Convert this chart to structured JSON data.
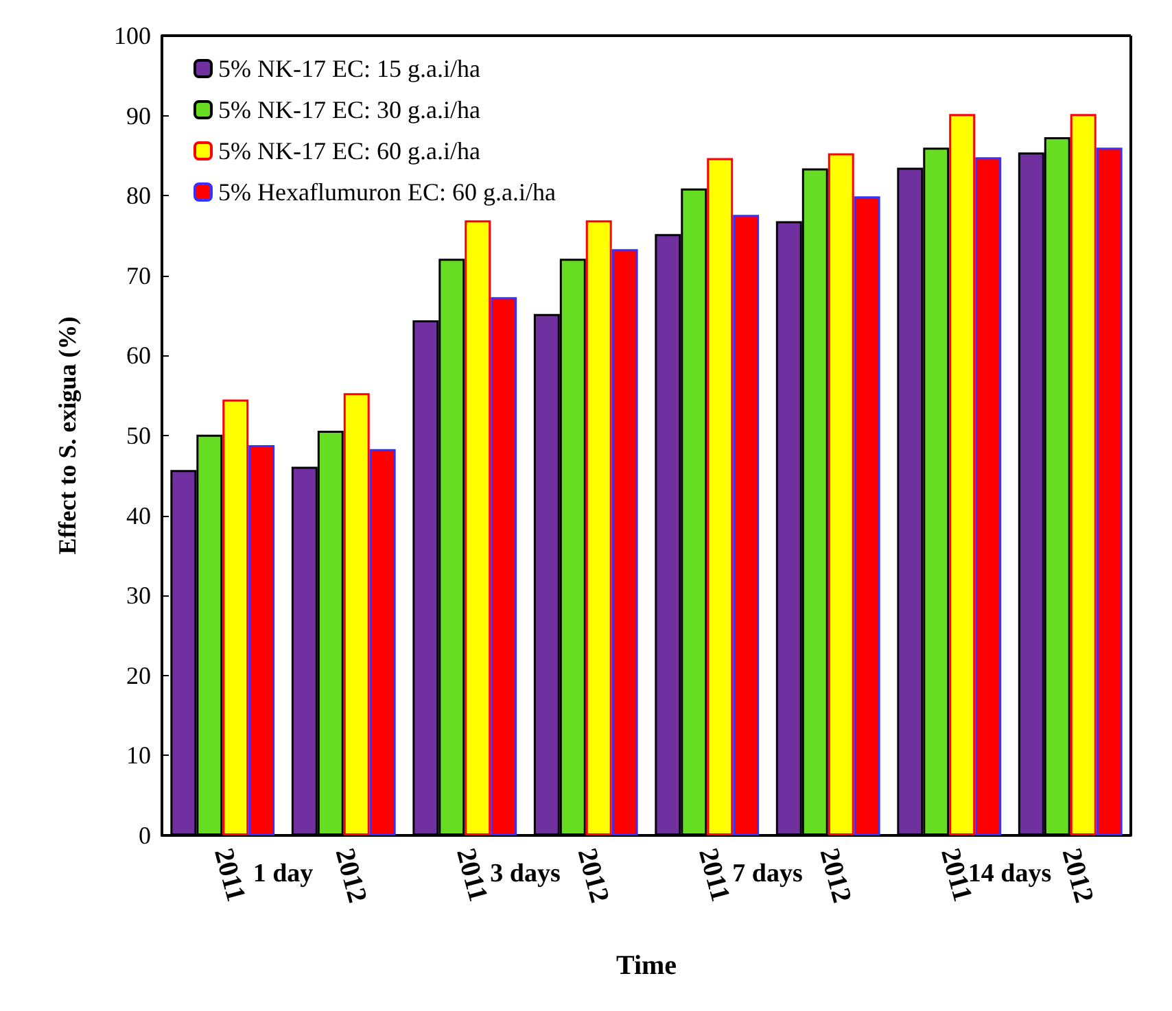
{
  "chart_data": {
    "type": "bar",
    "xlabel": "Time",
    "ylabel": "Effect to S. exigua (%)",
    "categories": [
      "2011",
      "2012",
      "2011",
      "2012",
      "2011",
      "2012",
      "2011",
      "2012"
    ],
    "series": [
      {
        "name": "5% NK-17 EC: 15 g.a.i/ha",
        "color": "#7030a0",
        "values": [
          45.7,
          46.1,
          64.4,
          65.2,
          75.2,
          76.8,
          83.5,
          85.4
        ]
      },
      {
        "name": "5% NK-17 EC: 30 g.a.i/ha",
        "color": "#66dd22",
        "values": [
          50.1,
          50.6,
          72.1,
          72.1,
          80.9,
          83.4,
          86.0,
          87.3
        ]
      },
      {
        "name": "5% NK-17 EC: 60 g.a.i/ha",
        "color": "#ffff00",
        "values": [
          54.5,
          55.3,
          76.9,
          76.9,
          84.7,
          85.3,
          90.2,
          90.2
        ]
      },
      {
        "name": "5% Hexaflumuron EC: 60 g.a.i/ha",
        "color": "#ff0000",
        "values": [
          48.8,
          48.3,
          67.3,
          73.3,
          77.6,
          79.9,
          84.8,
          86.0
        ]
      }
    ],
    "annotations": [
      "1 day",
      "3 days",
      "7 days",
      "14 days"
    ],
    "ylim": [
      0,
      100
    ],
    "yticks": [
      0,
      10,
      20,
      30,
      40,
      50,
      60,
      70,
      80,
      90,
      100
    ],
    "grid": false,
    "legend": "top left"
  }
}
